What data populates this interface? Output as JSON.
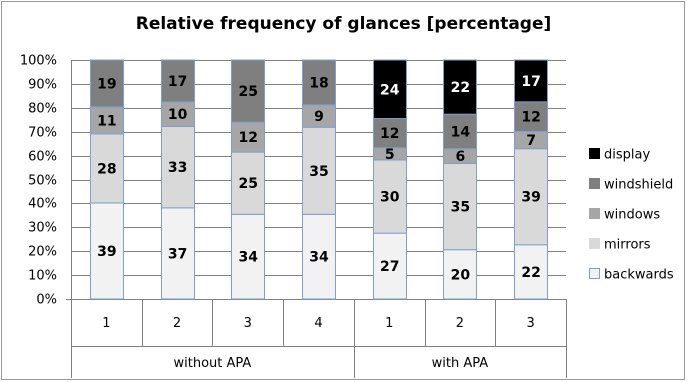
{
  "chart_data": {
    "type": "bar",
    "stacked": true,
    "percent_stacked": true,
    "title": "Relative frequency of glances [percentage]",
    "xlabel": "",
    "ylabel": "",
    "ylim": [
      0,
      100
    ],
    "y_ticks": [
      "0%",
      "10%",
      "20%",
      "30%",
      "40%",
      "50%",
      "60%",
      "70%",
      "80%",
      "90%",
      "100%"
    ],
    "grid": true,
    "legend_position": "right",
    "categories": [
      "1",
      "2",
      "3",
      "4",
      "1",
      "2",
      "3"
    ],
    "groups": [
      {
        "label": "without APA",
        "count": 4
      },
      {
        "label": "with APA",
        "count": 3
      }
    ],
    "series": [
      {
        "name": "backwards",
        "color": "#f2f2f2",
        "values": [
          39,
          37,
          34,
          34,
          27,
          20,
          22
        ]
      },
      {
        "name": "mirrors",
        "color": "#d9d9d9",
        "values": [
          28,
          33,
          25,
          35,
          30,
          35,
          39
        ]
      },
      {
        "name": "windows",
        "color": "#a6a6a6",
        "values": [
          11,
          10,
          12,
          9,
          5,
          6,
          7
        ]
      },
      {
        "name": "windshield",
        "color": "#7f7f7f",
        "values": [
          19,
          17,
          25,
          18,
          12,
          14,
          12
        ]
      },
      {
        "name": "display",
        "color": "#000000",
        "values": [
          null,
          null,
          null,
          null,
          24,
          22,
          17
        ]
      }
    ]
  }
}
